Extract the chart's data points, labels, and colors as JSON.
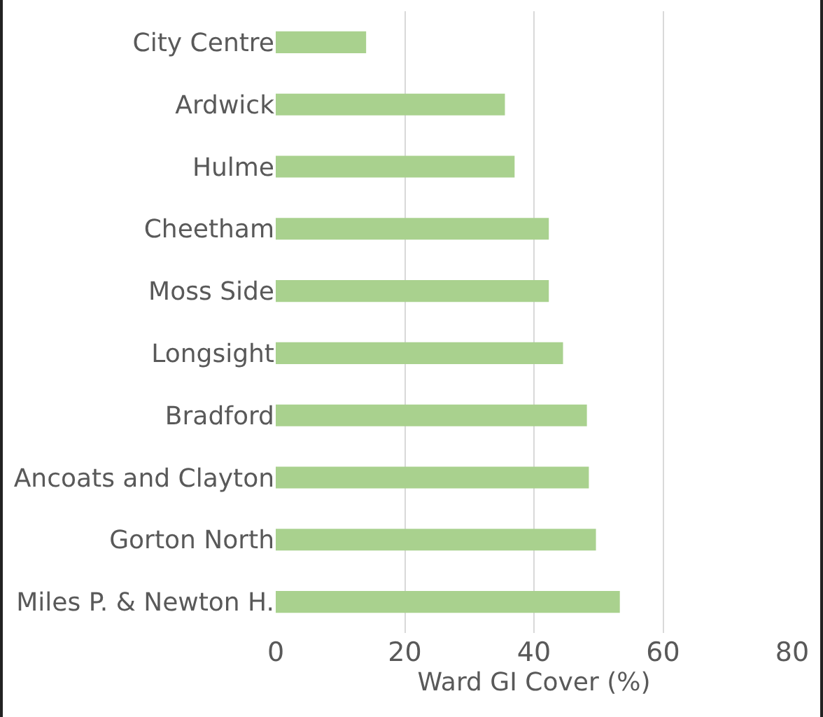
{
  "chart_data": {
    "type": "bar",
    "orientation": "horizontal",
    "xlabel": "Ward GI Cover (%)",
    "categories": [
      "City Centre",
      "Ardwick",
      "Hulme",
      "Cheetham",
      "Moss Side",
      "Longsight",
      "Bradford",
      "Ancoats and Clayton",
      "Gorton North",
      "Miles P. & Newton H."
    ],
    "values": [
      14,
      35.5,
      37,
      42.3,
      42.3,
      44.5,
      48.2,
      48.5,
      49.6,
      53.3
    ],
    "color": "#a9d18e",
    "xlim": [
      0,
      80
    ],
    "xticks": [
      0,
      20,
      40,
      60,
      80
    ],
    "grid": "x"
  }
}
